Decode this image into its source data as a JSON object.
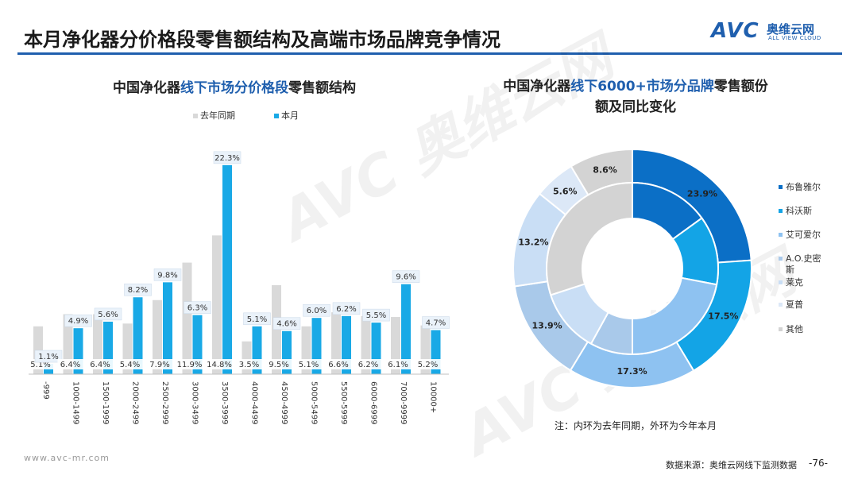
{
  "header": {
    "title": "本月净化器分价格段零售额结构及高端市场品牌竞争情况",
    "logo_avc": "AVC",
    "logo_cn": "奥维云网",
    "logo_en": "ALL VIEW CLOUD"
  },
  "bar_chart": {
    "title_pre": "中国净化器",
    "title_hl": "线下市场分价格段",
    "title_post": "零售额结构"
  },
  "donut_chart": {
    "title_pre": "中国净化器",
    "title_hl": "线下6000+市场分品牌",
    "title_post": "零售额份",
    "title_line2": "额及同比变化"
  },
  "note": "注：内环为去年同期，外环为今年本月",
  "footer": {
    "url": "www.avc-mr.com",
    "source": "数据来源：奥维云网线下监测数据",
    "page": "-76-"
  },
  "colors": {
    "last_year": "#d9d9d9",
    "this_month": "#19a9e6",
    "accent": "#1f5fae"
  },
  "chart_data": [
    {
      "type": "bar",
      "categories": [
        "-999",
        "1000-1499",
        "1500-1999",
        "2000-2499",
        "2500-2999",
        "3000-3499",
        "3500-3999",
        "4000-4499",
        "4500-4999",
        "5000-5499",
        "5500-5999",
        "6000-6999",
        "7000-9999",
        "10000+"
      ],
      "series": [
        {
          "name": "去年同期",
          "values": [
            5.1,
            6.4,
            6.4,
            5.4,
            7.9,
            11.9,
            14.8,
            3.5,
            9.5,
            5.1,
            6.6,
            6.2,
            6.1,
            5.2
          ],
          "labels": [
            "5.1%",
            "6.4%",
            "6.4%",
            "5.4%",
            "7.9%",
            "11.9%",
            "14.8%",
            "3.5%",
            "9.5%",
            "5.1%",
            "6.6%",
            "6.2%",
            "6.1%",
            "5.2%"
          ]
        },
        {
          "name": "本月",
          "values": [
            1.1,
            4.9,
            5.6,
            8.2,
            9.8,
            6.3,
            22.3,
            5.1,
            4.6,
            6.0,
            6.2,
            5.5,
            9.6,
            4.7
          ],
          "labels": [
            "1.1%",
            "4.9%",
            "5.6%",
            "8.2%",
            "9.8%",
            "6.3%",
            "22.3%",
            "5.1%",
            "4.6%",
            "6.0%",
            "6.2%",
            "5.5%",
            "9.6%",
            "4.7%"
          ]
        }
      ],
      "legend_position": "top"
    },
    {
      "type": "pie",
      "categories": [
        "布鲁雅尔",
        "科沃斯",
        "艾可爱尔",
        "A.O.史密斯",
        "莱克",
        "夏普",
        "其他"
      ],
      "colors": [
        "#0b6fc6",
        "#13a4e6",
        "#8ec2f1",
        "#a9c9ea",
        "#c9def5",
        "#dce8f7",
        "#d3d3d3"
      ],
      "series": [
        {
          "name": "外环",
          "values": [
            23.9,
            17.5,
            17.3,
            13.9,
            13.2,
            5.6,
            8.6
          ],
          "labels": [
            "23.9%",
            "17.5%",
            "17.3%",
            "13.9%",
            "13.2%",
            "5.6%",
            "8.6%"
          ]
        },
        {
          "name": "内环",
          "values": [
            15.0,
            13.0,
            22.0,
            8.0,
            12.0,
            0,
            30.0
          ]
        }
      ],
      "legend_position": "right"
    }
  ]
}
